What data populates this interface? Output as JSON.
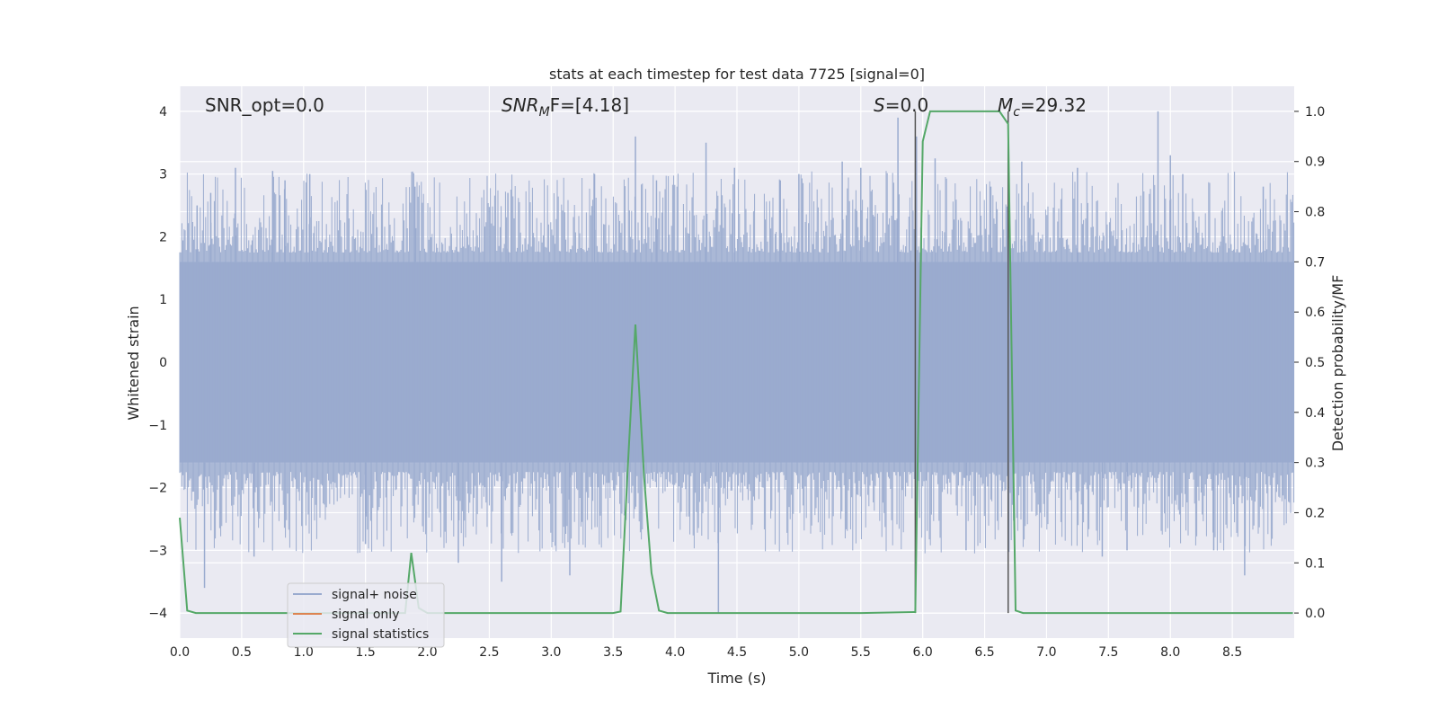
{
  "chart_data": {
    "type": "line",
    "title": "stats at each timestep for test data 7725 [signal=0]",
    "xlabel": "Time (s)",
    "ylabel_left": "Whitened strain",
    "ylabel_right": "Detection probability/MF",
    "xlim": [
      0.0,
      9.0
    ],
    "ylim_left": [
      -4.4,
      4.4
    ],
    "ylim_right": [
      -0.05,
      1.05
    ],
    "x_ticks": [
      0.0,
      0.5,
      1.0,
      1.5,
      2.0,
      2.5,
      3.0,
      3.5,
      4.0,
      4.5,
      5.0,
      5.5,
      6.0,
      6.5,
      7.0,
      7.5,
      8.0,
      8.5
    ],
    "x_tick_labels": [
      "0.0",
      "0.5",
      "1.0",
      "1.5",
      "2.0",
      "2.5",
      "3.0",
      "3.5",
      "4.0",
      "4.5",
      "5.0",
      "5.5",
      "6.0",
      "6.5",
      "7.0",
      "7.5",
      "8.0",
      "8.5"
    ],
    "y_left_ticks": [
      -4,
      -3,
      -2,
      -1,
      0,
      1,
      2,
      3,
      4
    ],
    "y_left_tick_labels": [
      "−4",
      "−3",
      "−2",
      "−1",
      "0",
      "1",
      "2",
      "3",
      "4"
    ],
    "y_right_ticks": [
      0.0,
      0.1,
      0.2,
      0.3,
      0.4,
      0.5,
      0.6,
      0.7,
      0.8,
      0.9,
      1.0
    ],
    "y_right_tick_labels": [
      "0.0",
      "0.1",
      "0.2",
      "0.3",
      "0.4",
      "0.5",
      "0.6",
      "0.7",
      "0.8",
      "0.9",
      "1.0"
    ],
    "grid": true,
    "legend_position": "lower-left",
    "annotations": {
      "snr_opt": "SNR_opt=0.0",
      "snr_mf_main": "SNR",
      "snr_mf_sub": "M",
      "snr_mf_rest": "F=[4.18]",
      "s_main": "S",
      "s_rest": "=0.0",
      "mc_main": "M",
      "mc_sub": "c",
      "mc_rest": "=29.32"
    },
    "vertical_lines_x": [
      5.94,
      6.69
    ],
    "series": [
      {
        "name": "signal+ noise",
        "color": "#9aabcf",
        "axis": "left",
        "description_level": 1.6,
        "spikes": [
          [
            0.14,
            2.5
          ],
          [
            0.2,
            -3.6
          ],
          [
            0.25,
            2.7
          ],
          [
            0.45,
            3.1
          ],
          [
            0.6,
            -3.1
          ],
          [
            0.75,
            3.05
          ],
          [
            0.85,
            2.9
          ],
          [
            1.05,
            3.0
          ],
          [
            1.5,
            -2.9
          ],
          [
            1.9,
            2.8
          ],
          [
            2.25,
            -3.2
          ],
          [
            2.6,
            -3.5
          ],
          [
            2.65,
            2.7
          ],
          [
            3.15,
            -3.4
          ],
          [
            3.35,
            3.0
          ],
          [
            3.68,
            3.6
          ],
          [
            3.85,
            2.9
          ],
          [
            4.25,
            3.5
          ],
          [
            4.35,
            -4.0
          ],
          [
            4.48,
            3.1
          ],
          [
            4.85,
            2.9
          ],
          [
            5.0,
            3.0
          ],
          [
            5.35,
            3.2
          ],
          [
            5.5,
            3.1
          ],
          [
            5.8,
            3.9
          ],
          [
            5.95,
            3.6
          ],
          [
            6.1,
            3.25
          ],
          [
            6.35,
            -3.0
          ],
          [
            6.55,
            2.8
          ],
          [
            6.8,
            3.2
          ],
          [
            7.25,
            3.1
          ],
          [
            7.45,
            -3.1
          ],
          [
            7.65,
            -3.0
          ],
          [
            7.9,
            4.0
          ],
          [
            8.0,
            3.3
          ],
          [
            8.1,
            3.0
          ],
          [
            8.35,
            -3.0
          ],
          [
            8.6,
            -3.4
          ],
          [
            8.75,
            2.8
          ]
        ]
      },
      {
        "name": "signal only",
        "color": "#dd8452",
        "axis": "left",
        "x": [
          0.0,
          9.0
        ],
        "y": [
          0.0,
          0.0
        ]
      },
      {
        "name": "signal statistics",
        "color": "#55a868",
        "axis": "right",
        "x": [
          0.0,
          0.06,
          0.13,
          0.5,
          1.0,
          1.5,
          1.82,
          1.87,
          1.93,
          2.0,
          2.5,
          3.0,
          3.5,
          3.56,
          3.62,
          3.68,
          3.75,
          3.81,
          3.87,
          3.94,
          4.0,
          4.5,
          5.0,
          5.5,
          5.94,
          6.0,
          6.06,
          6.5,
          6.62,
          6.69,
          6.75,
          6.81,
          7.0,
          7.5,
          8.0,
          8.5,
          8.99
        ],
        "y": [
          0.19,
          0.005,
          0.0,
          0.0,
          0.0,
          0.0,
          0.0,
          0.12,
          0.01,
          0.0,
          0.0,
          0.0,
          0.0,
          0.003,
          0.3,
          0.575,
          0.27,
          0.08,
          0.005,
          0.0,
          0.0,
          0.0,
          0.0,
          0.0,
          0.002,
          0.94,
          1.0,
          1.0,
          1.0,
          0.975,
          0.005,
          0.0,
          0.0,
          0.0,
          0.0,
          0.0,
          0.0
        ]
      }
    ]
  }
}
